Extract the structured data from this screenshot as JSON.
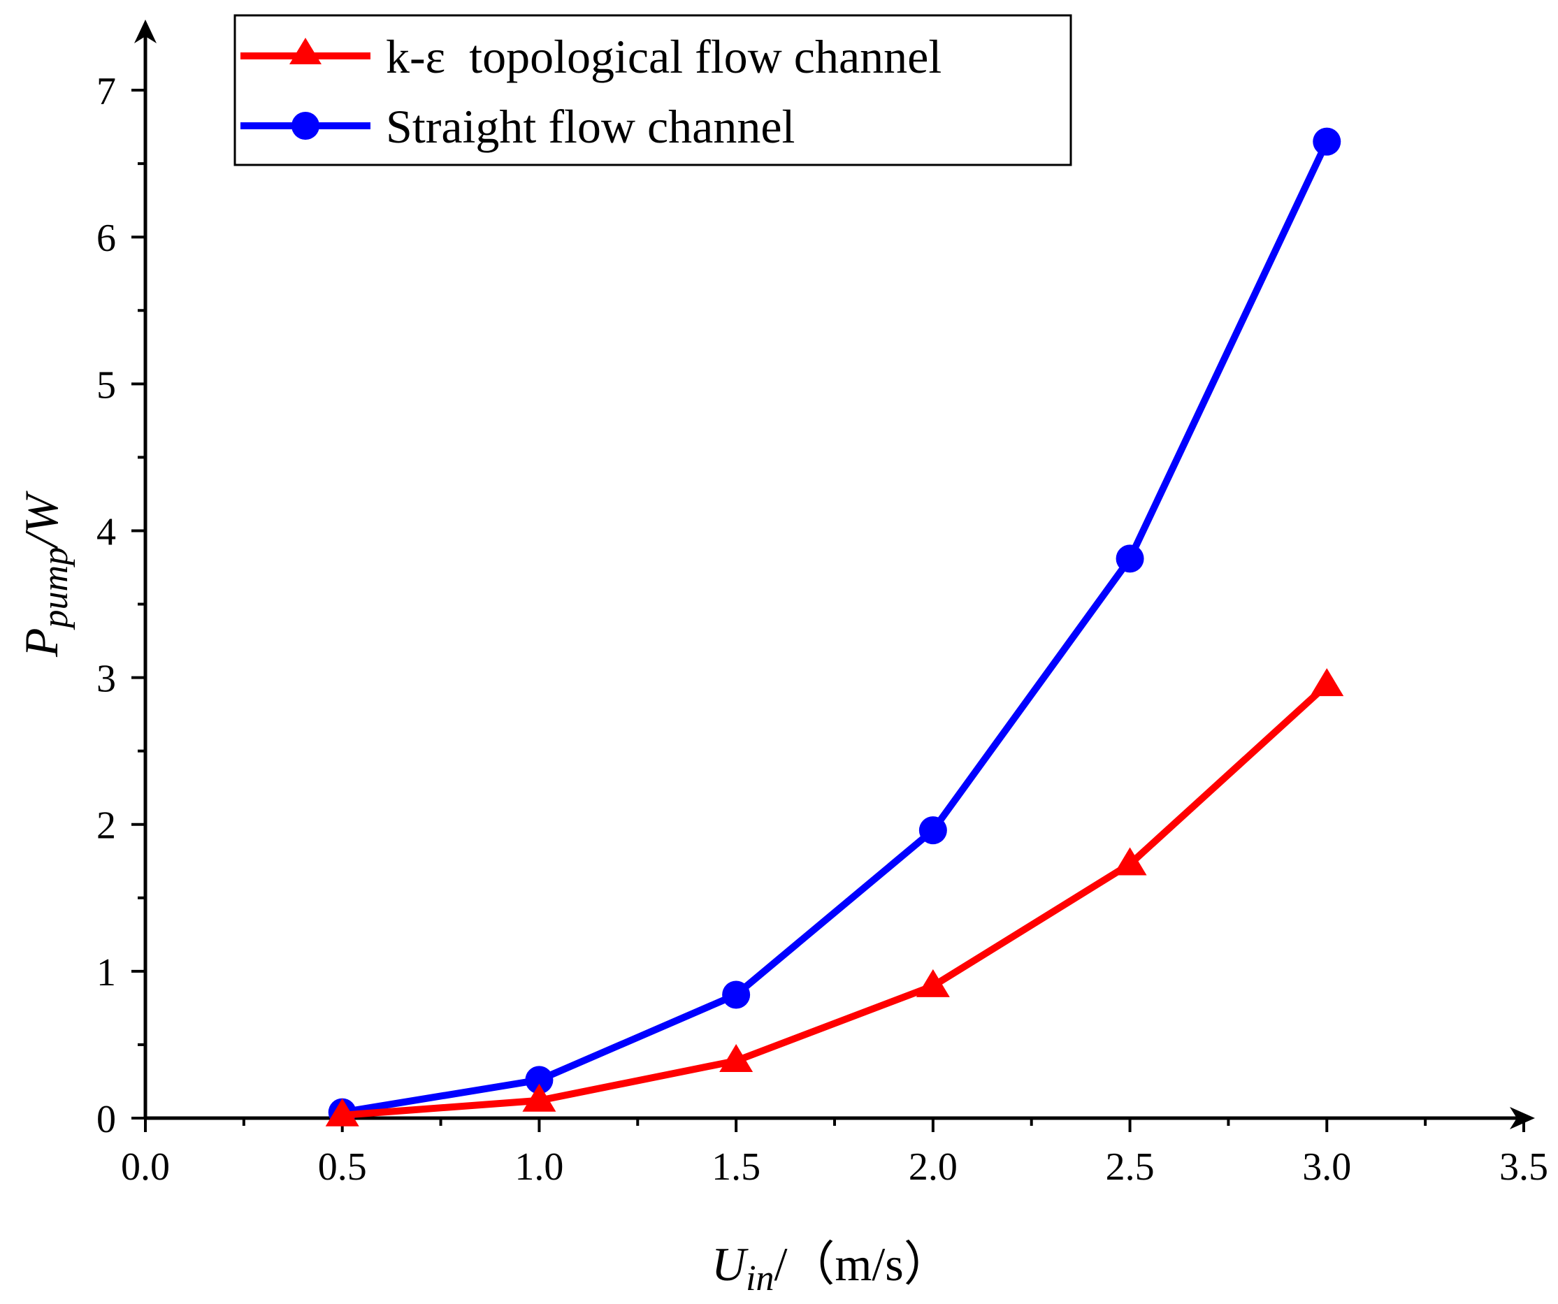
{
  "chart_data": {
    "type": "line",
    "title": "",
    "x": [
      0.5,
      1.0,
      1.5,
      2.0,
      2.5,
      3.0
    ],
    "series": [
      {
        "name": "k-ε  topological flow channel",
        "color": "#ff0000",
        "marker": "triangle",
        "values": [
          0.02,
          0.12,
          0.39,
          0.9,
          1.73,
          2.95
        ]
      },
      {
        "name": "Straight flow channel",
        "color": "#0000ff",
        "marker": "circle",
        "values": [
          0.04,
          0.26,
          0.84,
          1.96,
          3.81,
          6.65
        ]
      }
    ],
    "xlim": [
      0.0,
      3.5
    ],
    "ylim": [
      0,
      7.4
    ],
    "x_ticks": [
      "0.0",
      "0.5",
      "1.0",
      "1.5",
      "2.0",
      "2.5",
      "3.0",
      "3.5"
    ],
    "y_ticks": [
      "0",
      "1",
      "2",
      "3",
      "4",
      "5",
      "6",
      "7"
    ],
    "xlabel": {
      "main": "U",
      "sub": "in",
      "unit": "/（m/s）"
    },
    "ylabel": {
      "main": "P",
      "sub": "pump",
      "unit": "/W"
    },
    "legend_position": "top-left",
    "grid": false
  }
}
